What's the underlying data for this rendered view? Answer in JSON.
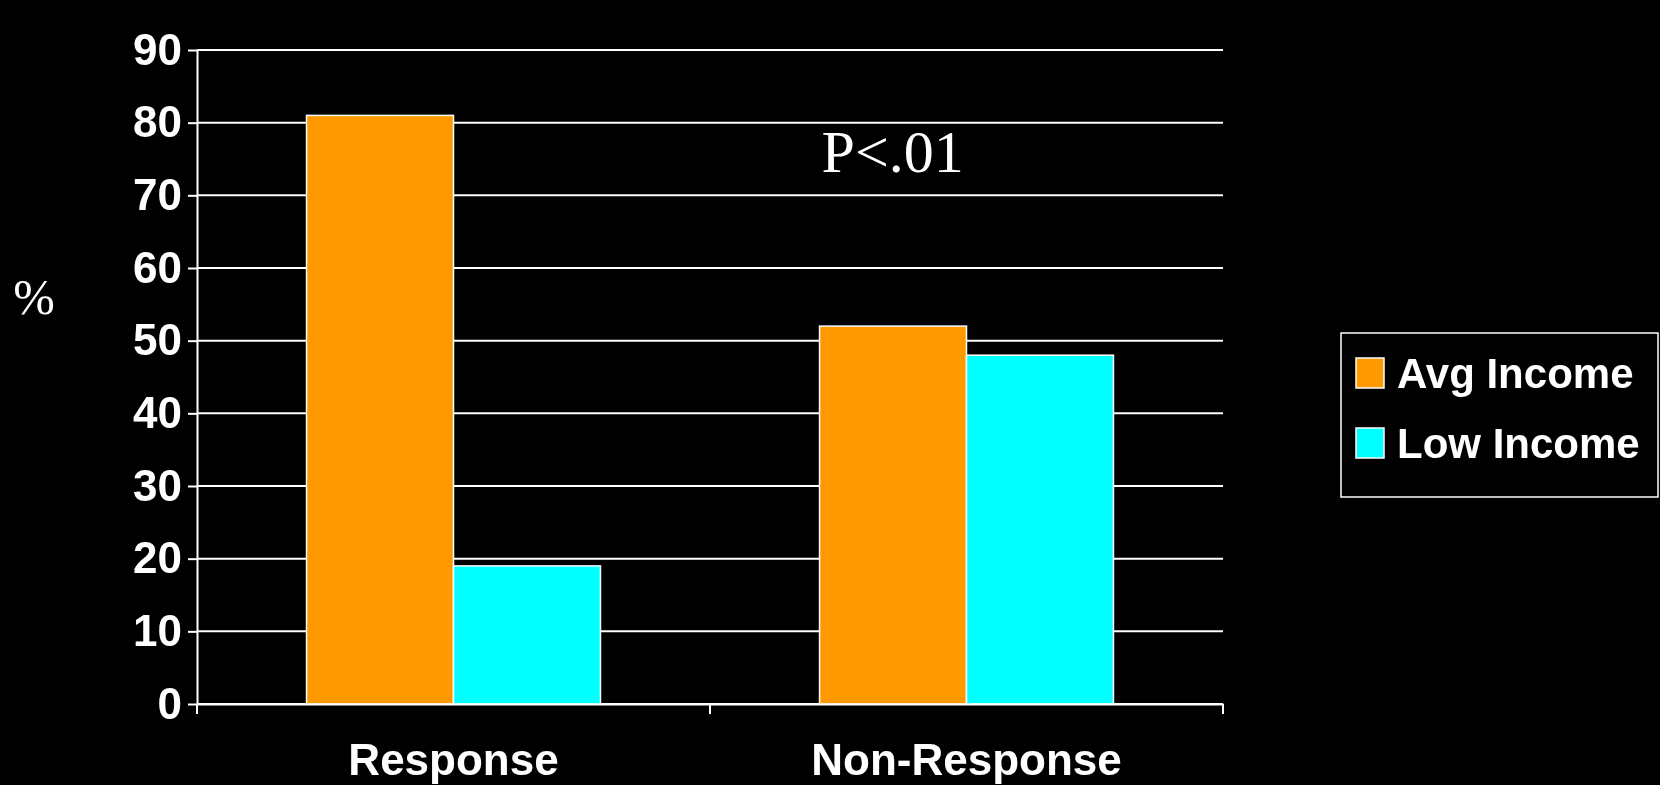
{
  "chart_data": {
    "type": "bar",
    "categories": [
      "Response",
      "Non-Response"
    ],
    "series": [
      {
        "name": "Avg Income",
        "color": "#ff9900",
        "values": [
          81,
          52
        ]
      },
      {
        "name": "Low Income",
        "color": "#00ffff",
        "values": [
          19,
          48
        ]
      }
    ],
    "ylabel": "%",
    "ylim": [
      0,
      90
    ],
    "yticks": [
      0,
      10,
      20,
      30,
      40,
      50,
      60,
      70,
      80,
      90
    ],
    "grid": "y",
    "legend": "right",
    "annotations": [
      "P<.01"
    ]
  }
}
